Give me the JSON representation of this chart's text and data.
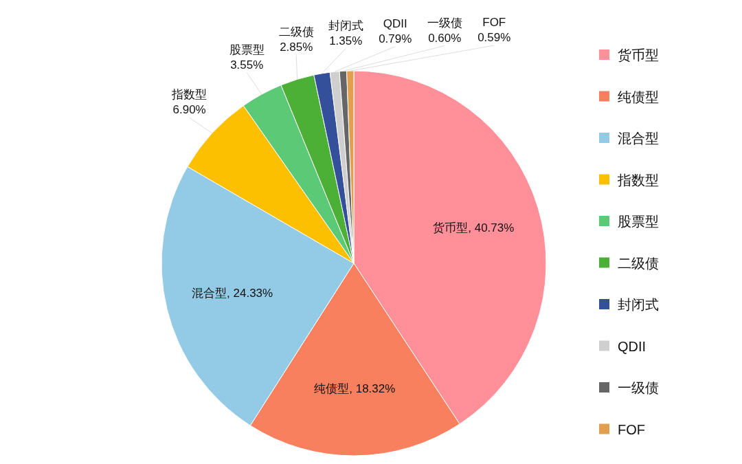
{
  "chart_data": {
    "type": "pie",
    "categories": [
      "货币型",
      "纯债型",
      "混合型",
      "指数型",
      "股票型",
      "二级债",
      "封闭式",
      "QDII",
      "一级债",
      "FOF"
    ],
    "values": [
      40.73,
      18.32,
      24.33,
      6.9,
      3.55,
      2.85,
      1.35,
      0.79,
      0.6,
      0.59
    ],
    "value_labels": [
      "货币型, 40.73%",
      "纯债型, 18.32%",
      "混合型, 24.33%",
      "6.90%",
      "3.55%",
      "2.85%",
      "1.35%",
      "0.79%",
      "0.60%",
      "0.59%"
    ],
    "colors": [
      "#ff8f98",
      "#f8805e",
      "#93cbe6",
      "#fcc000",
      "#5cc977",
      "#4caf36",
      "#34509a",
      "#cfcfcf",
      "#666666",
      "#e0a050"
    ],
    "legend": "right"
  }
}
